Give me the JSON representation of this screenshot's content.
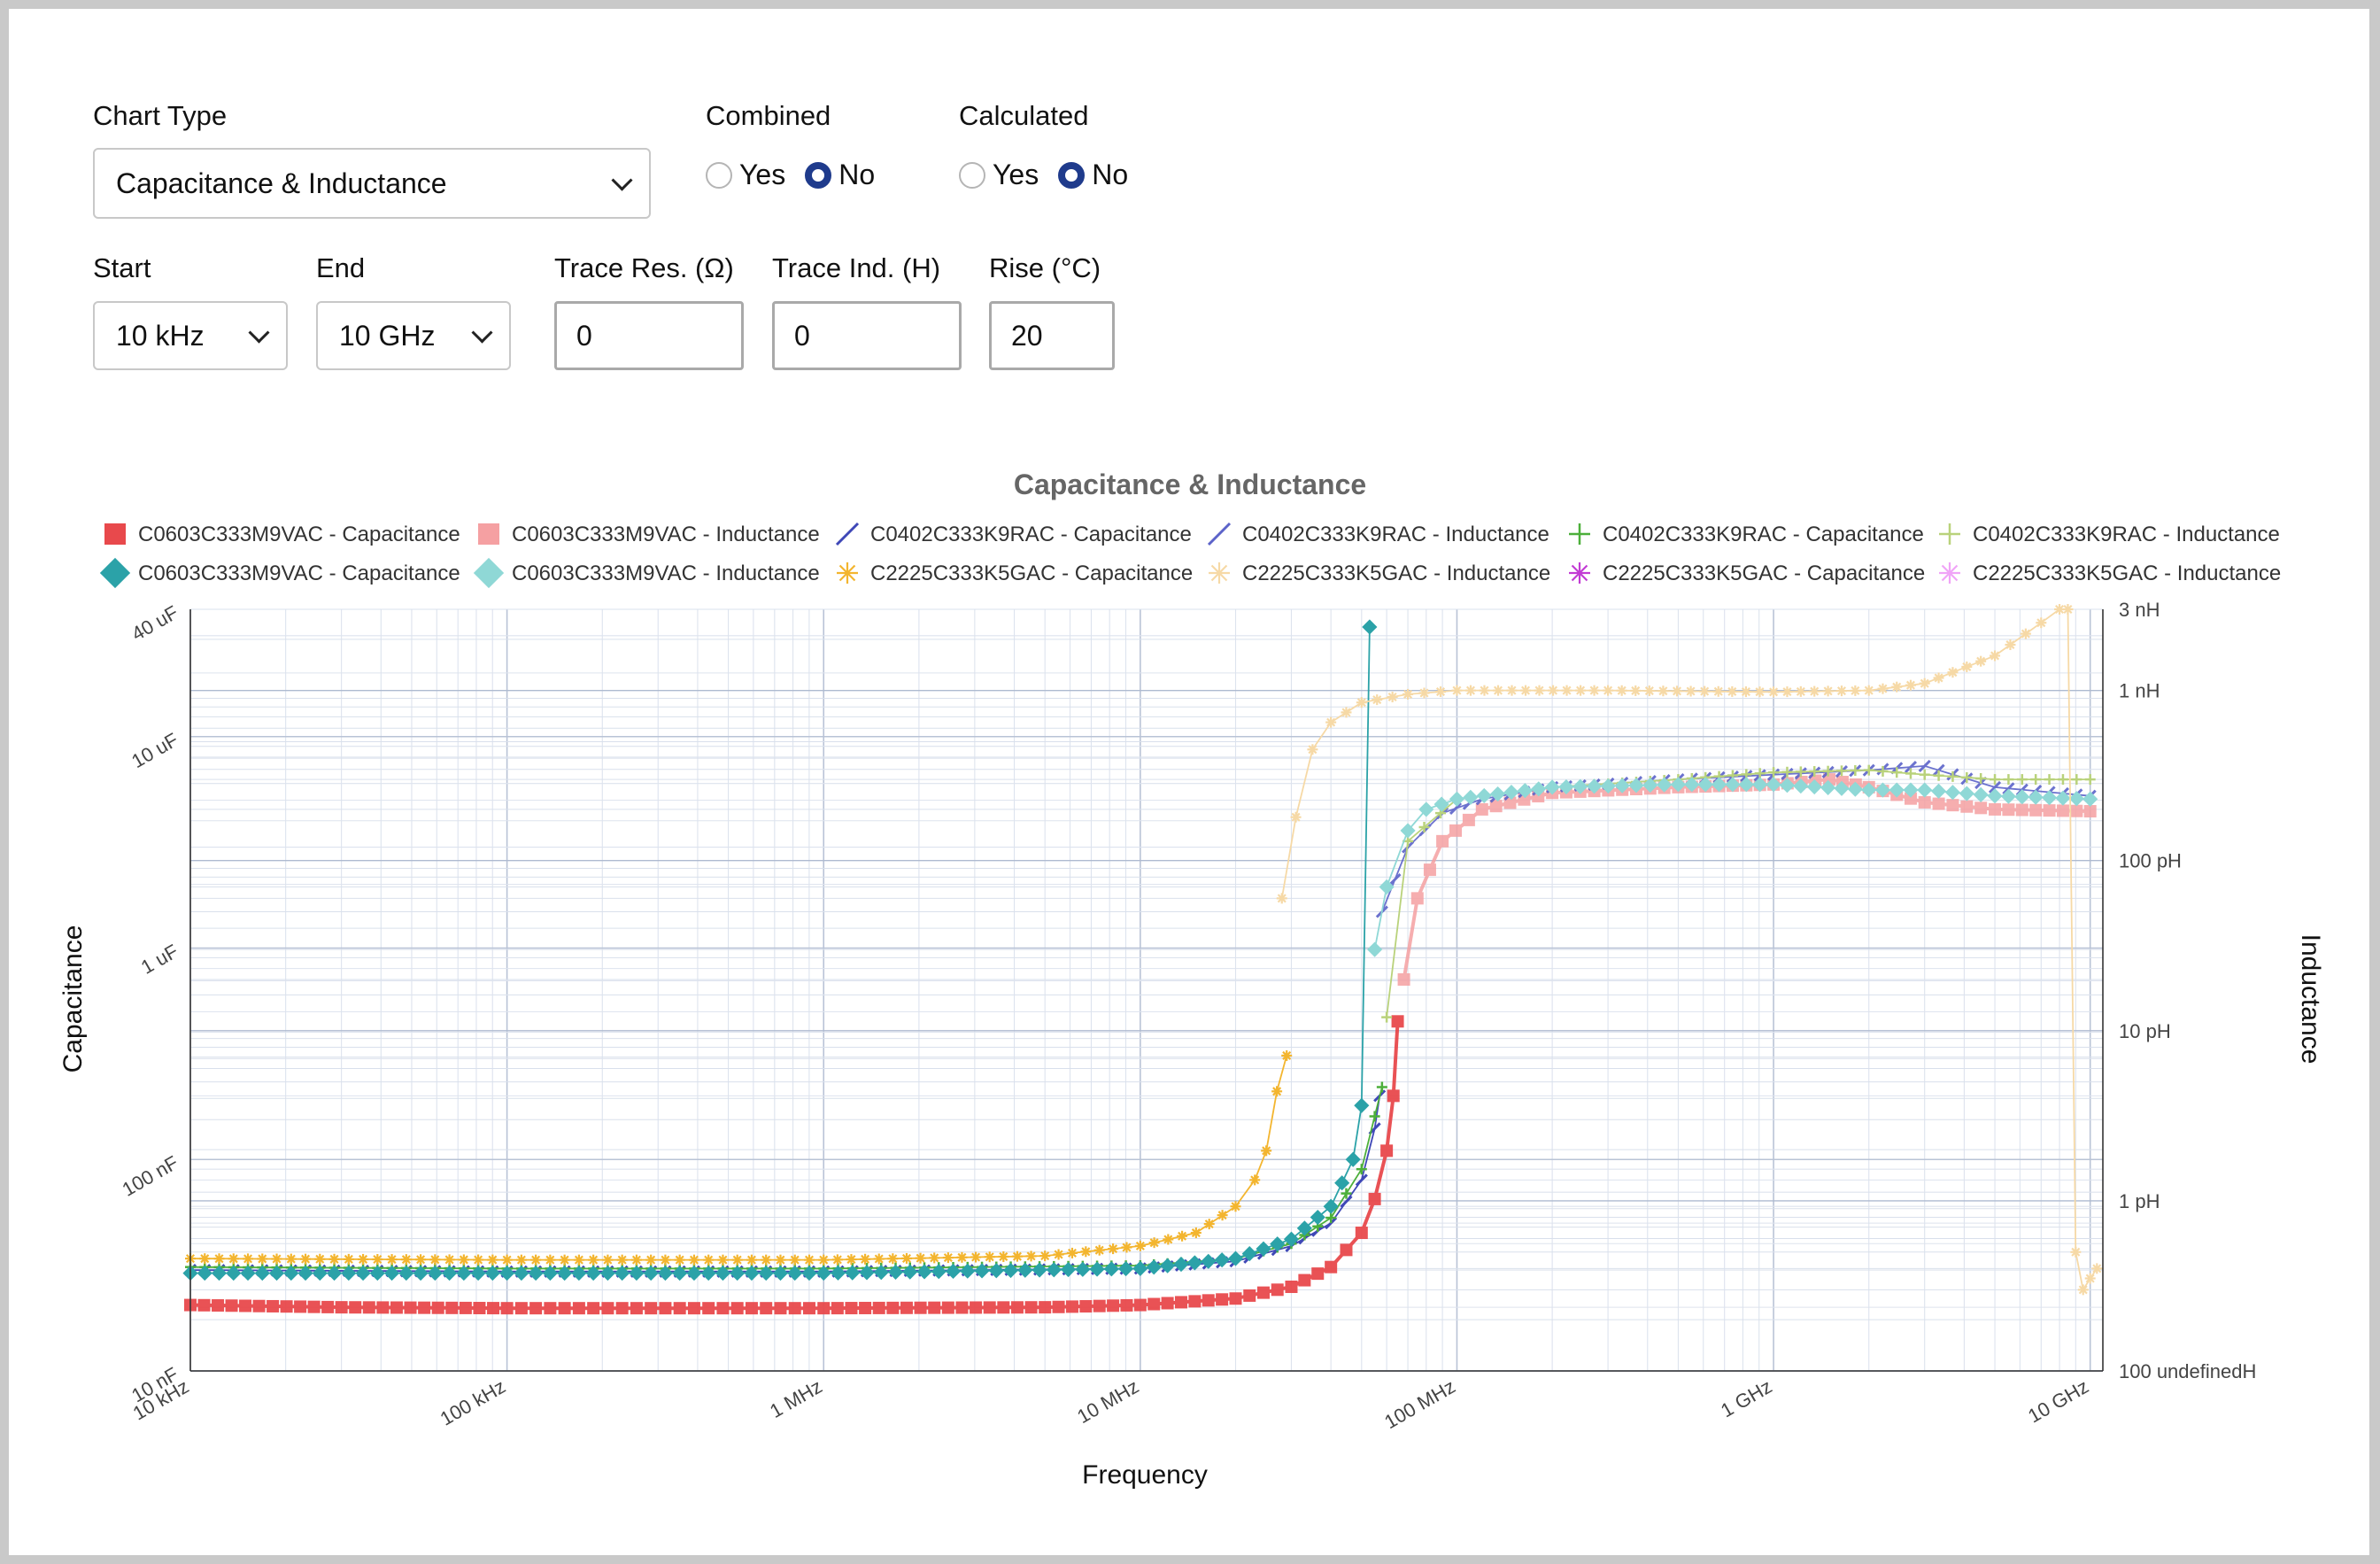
{
  "form": {
    "chart_type_label": "Chart Type",
    "chart_type_value": "Capacitance & Inductance",
    "combined_label": "Combined",
    "calculated_label": "Calculated",
    "yes": "Yes",
    "no": "No",
    "combined_selected": "No",
    "calculated_selected": "No",
    "start_label": "Start",
    "start_value": "10 kHz",
    "end_label": "End",
    "end_value": "10 GHz",
    "trace_res_label": "Trace Res. (Ω)",
    "trace_res_value": "0",
    "trace_ind_label": "Trace Ind. (H)",
    "trace_ind_value": "0",
    "rise_label": "Rise (°C)",
    "rise_value": "20"
  },
  "chart_data": {
    "type": "line",
    "title": "Capacitance & Inductance",
    "xlabel": "Frequency",
    "ylabel": "Capacitance",
    "y2label": "Inductance",
    "x_scale": "log",
    "y_scale": "log",
    "y2_scale": "log",
    "grid": true,
    "legend_position": "top",
    "x_ticks": [
      {
        "value": 10000,
        "label": "10 kHz"
      },
      {
        "value": 100000,
        "label": "100 kHz"
      },
      {
        "value": 1000000,
        "label": "1 MHz"
      },
      {
        "value": 10000000,
        "label": "10 MHz"
      },
      {
        "value": 100000000,
        "label": "100 MHz"
      },
      {
        "value": 1000000000,
        "label": "1 GHz"
      },
      {
        "value": 10000000000,
        "label": "10 GHz"
      }
    ],
    "y_ticks": [
      {
        "value": 1e-08,
        "label": "10 nF"
      },
      {
        "value": 1e-07,
        "label": "100 nF"
      },
      {
        "value": 1e-06,
        "label": "1 uF"
      },
      {
        "value": 1e-05,
        "label": "10 uF"
      },
      {
        "value": 4e-05,
        "label": "40 uF"
      }
    ],
    "y2_ticks": [
      {
        "value": 1e-13,
        "label": "100 undefinedH"
      },
      {
        "value": 1e-12,
        "label": "1 pH"
      },
      {
        "value": 1e-11,
        "label": "10 pH"
      },
      {
        "value": 1e-10,
        "label": "100 pH"
      },
      {
        "value": 1e-09,
        "label": "1 nH"
      },
      {
        "value": 3e-09,
        "label": "3 nH"
      }
    ],
    "series": [
      {
        "name": "C0603C333M9VAC - Capacitance",
        "axis": "left",
        "color": "#e8494c",
        "marker": "square",
        "width": 9,
        "opacity": 0.95,
        "points": [
          [
            10000.0,
            2.05e-08
          ],
          [
            30000.0,
            2e-08
          ],
          [
            100000.0,
            1.98e-08
          ],
          [
            1000000.0,
            1.98e-08
          ],
          [
            5000000.0,
            2e-08
          ],
          [
            10000000.0,
            2.05e-08
          ],
          [
            20000000.0,
            2.2e-08
          ],
          [
            30000000.0,
            2.5e-08
          ],
          [
            40000000.0,
            3.1e-08
          ],
          [
            50000000.0,
            4.5e-08
          ],
          [
            55000000.0,
            6.5e-08
          ],
          [
            60000000.0,
            1.1e-07
          ],
          [
            63000000.0,
            2e-07
          ],
          [
            65000000.0,
            4.5e-07
          ]
        ]
      },
      {
        "name": "C0603C333M9VAC - Inductance",
        "axis": "right",
        "color": "#f5a0a2",
        "marker": "square",
        "width": 9,
        "opacity": 0.85,
        "points": [
          [
            68000000.0,
            2e-11
          ],
          [
            75000000.0,
            6e-11
          ],
          [
            90000000.0,
            1.3e-10
          ],
          [
            120000000.0,
            2e-10
          ],
          [
            200000000.0,
            2.5e-10
          ],
          [
            500000000.0,
            2.7e-10
          ],
          [
            1000000000.0,
            2.8e-10
          ],
          [
            1500000000.0,
            3e-10
          ],
          [
            2000000000.0,
            2.7e-10
          ],
          [
            3000000000.0,
            2.2e-10
          ],
          [
            5000000000.0,
            2e-10
          ],
          [
            10000000000.0,
            1.95e-10
          ]
        ]
      },
      {
        "name": "C0402C333K9RAC - Capacitance",
        "axis": "left",
        "color": "#3f48b7",
        "marker": "slash",
        "width": 3,
        "opacity": 1,
        "points": [
          [
            10000.0,
            3e-08
          ],
          [
            100000.0,
            2.95e-08
          ],
          [
            1000000.0,
            2.95e-08
          ],
          [
            10000000.0,
            3.05e-08
          ],
          [
            20000000.0,
            3.3e-08
          ],
          [
            30000000.0,
            3.9e-08
          ],
          [
            40000000.0,
            5e-08
          ],
          [
            50000000.0,
            8e-08
          ],
          [
            55000000.0,
            1.4e-07
          ],
          [
            57000000.0,
            2e-07
          ]
        ]
      },
      {
        "name": "C0402C333K9RAC - Inductance",
        "axis": "right",
        "color": "#5c63c9",
        "marker": "slash",
        "width": 3,
        "opacity": 0.9,
        "points": [
          [
            58000000.0,
            5e-11
          ],
          [
            70000000.0,
            1.2e-10
          ],
          [
            90000000.0,
            1.9e-10
          ],
          [
            120000000.0,
            2.3e-10
          ],
          [
            200000000.0,
            2.7e-10
          ],
          [
            500000000.0,
            3e-10
          ],
          [
            1000000000.0,
            3.2e-10
          ],
          [
            2000000000.0,
            3.4e-10
          ],
          [
            3000000000.0,
            3.6e-10
          ],
          [
            5000000000.0,
            2.7e-10
          ],
          [
            10000000000.0,
            2.4e-10
          ]
        ]
      },
      {
        "name": "C0402C333K9RAC - Capacitance",
        "axis": "left",
        "color": "#4caf3a",
        "marker": "plus",
        "width": 2,
        "opacity": 1,
        "points": [
          [
            10000.0,
            3.1e-08
          ],
          [
            100000.0,
            3.05e-08
          ],
          [
            1000000.0,
            3.05e-08
          ],
          [
            10000000.0,
            3.15e-08
          ],
          [
            20000000.0,
            3.4e-08
          ],
          [
            30000000.0,
            4e-08
          ],
          [
            40000000.0,
            5.3e-08
          ],
          [
            50000000.0,
            9e-08
          ],
          [
            55000000.0,
            1.6e-07
          ],
          [
            58000000.0,
            2.2e-07
          ]
        ]
      },
      {
        "name": "C0402C333K9RAC - Inductance",
        "axis": "right",
        "color": "#b9d27b",
        "marker": "plus",
        "width": 2,
        "opacity": 1,
        "points": [
          [
            60000000.0,
            1.2e-11
          ],
          [
            70000000.0,
            1.3e-10
          ],
          [
            100000000.0,
            2.3e-10
          ],
          [
            200000000.0,
            2.7e-10
          ],
          [
            500000000.0,
            3e-10
          ],
          [
            1000000000.0,
            3.3e-10
          ],
          [
            2000000000.0,
            3.4e-10
          ],
          [
            3000000000.0,
            3.2e-10
          ],
          [
            5000000000.0,
            3e-10
          ],
          [
            10000000000.0,
            3e-10
          ]
        ]
      },
      {
        "name": "C0603C333M9VAC - Capacitance",
        "axis": "left",
        "color": "#2ba2a8",
        "marker": "diamond",
        "width": 2,
        "opacity": 1,
        "points": [
          [
            10000.0,
            2.9e-08
          ],
          [
            100000.0,
            2.9e-08
          ],
          [
            1000000.0,
            2.9e-08
          ],
          [
            10000000.0,
            3.05e-08
          ],
          [
            20000000.0,
            3.4e-08
          ],
          [
            30000000.0,
            4.2e-08
          ],
          [
            40000000.0,
            6e-08
          ],
          [
            47000000.0,
            1e-07
          ],
          [
            50000000.0,
            1.8e-07
          ],
          [
            53000000.0,
            3.3e-05
          ]
        ]
      },
      {
        "name": "C0603C333M9VAC - Inductance",
        "axis": "right",
        "color": "#8fd8d6",
        "marker": "diamond",
        "width": 2,
        "opacity": 1,
        "points": [
          [
            55000000.0,
            3e-11
          ],
          [
            60000000.0,
            7e-11
          ],
          [
            70000000.0,
            1.5e-10
          ],
          [
            80000000.0,
            2e-10
          ],
          [
            100000000.0,
            2.3e-10
          ],
          [
            200000000.0,
            2.7e-10
          ],
          [
            500000000.0,
            2.8e-10
          ],
          [
            1000000000.0,
            2.8e-10
          ],
          [
            2000000000.0,
            2.6e-10
          ],
          [
            3000000000.0,
            2.6e-10
          ],
          [
            5000000000.0,
            2.4e-10
          ],
          [
            10000000000.0,
            2.3e-10
          ]
        ]
      },
      {
        "name": "C2225C333K5GAC - Capacitance",
        "axis": "left",
        "color": "#f3b52f",
        "marker": "star",
        "width": 2,
        "opacity": 1,
        "points": [
          [
            10000.0,
            3.4e-08
          ],
          [
            100000.0,
            3.35e-08
          ],
          [
            1000000.0,
            3.35e-08
          ],
          [
            5000000.0,
            3.5e-08
          ],
          [
            10000000.0,
            3.9e-08
          ],
          [
            15000000.0,
            4.5e-08
          ],
          [
            20000000.0,
            6e-08
          ],
          [
            23000000.0,
            8e-08
          ],
          [
            25000000.0,
            1.1e-07
          ],
          [
            27000000.0,
            2.1e-07
          ],
          [
            29000000.0,
            3.1e-07
          ]
        ]
      },
      {
        "name": "C2225C333K5GAC - Inductance",
        "axis": "right",
        "color": "#f6d9a6",
        "marker": "star",
        "width": 2,
        "opacity": 1,
        "points": [
          [
            28000000.0,
            6e-11
          ],
          [
            31000000.0,
            1.8e-10
          ],
          [
            35000000.0,
            4.5e-10
          ],
          [
            40000000.0,
            6.5e-10
          ],
          [
            50000000.0,
            8.5e-10
          ],
          [
            70000000.0,
            9.5e-10
          ],
          [
            100000000.0,
            1e-09
          ],
          [
            300000000.0,
            1e-09
          ],
          [
            1000000000.0,
            9.8e-10
          ],
          [
            2000000000.0,
            1e-09
          ],
          [
            3000000000.0,
            1.1e-09
          ],
          [
            5000000000.0,
            1.6e-09
          ],
          [
            7000000000.0,
            2.5e-09
          ],
          [
            8000000000.0,
            3e-09
          ],
          [
            8500000000.0,
            3e-09
          ],
          [
            9000000000.0,
            5e-13
          ],
          [
            9500000000.0,
            3e-13
          ],
          [
            10000000000.0,
            3.5e-13
          ],
          [
            10500000000.0,
            4e-13
          ]
        ]
      },
      {
        "name": "C2225C333K5GAC - Capacitance",
        "axis": "left",
        "color": "#c23bd4",
        "marker": "asterisk",
        "width": 2,
        "opacity": 1,
        "points": []
      },
      {
        "name": "C2225C333K5GAC - Inductance",
        "axis": "right",
        "color": "#f0a4f7",
        "marker": "asterisk",
        "width": 2,
        "opacity": 1,
        "points": []
      }
    ]
  }
}
